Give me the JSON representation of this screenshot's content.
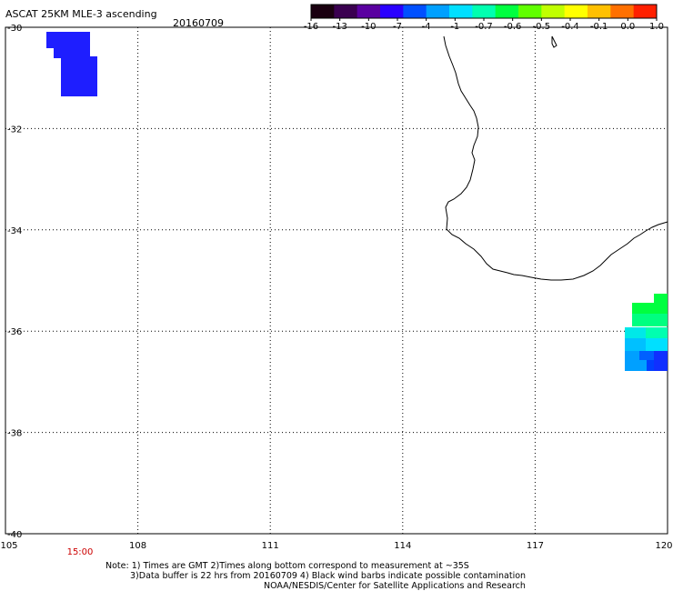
{
  "header": {
    "title": "ASCAT 25KM MLE-3 ascending",
    "date": "20160709"
  },
  "colorbar": {
    "labels": [
      "-16",
      "-13",
      "-10",
      "-7",
      "-4",
      "-1",
      "-0.7",
      "-0.6",
      "-0.5",
      "-0.4",
      "-0.1",
      "0.0",
      "1.0"
    ],
    "colors": [
      "#1a0010",
      "#3a0050",
      "#5a00a0",
      "#2a00ff",
      "#0050ff",
      "#00a0ff",
      "#00e0ff",
      "#00ffb0",
      "#00ff40",
      "#60ff00",
      "#c0ff00",
      "#ffff00",
      "#ffc000",
      "#ff7000",
      "#ff2000"
    ]
  },
  "map": {
    "lat_labels": [
      "-30",
      "-32",
      "-34",
      "-36",
      "-38",
      "-40"
    ],
    "lon_labels": [
      "105",
      "108",
      "111",
      "114",
      "117",
      "120"
    ],
    "lat_range": [
      -40,
      -30
    ],
    "lon_range": [
      105,
      120
    ],
    "time_label": "15:00",
    "time_label_color": "#cc0000"
  },
  "notes": {
    "line1": "Note: 1) Times are GMT 2)Times along bottom correspond to measurement at ~35S",
    "line2": "3)Data buffer is 22 hrs from 20160709 4) Black wind barbs indicate possible contamination",
    "line3": "NOAA/NESDIS/Center for Satellite Applications and Research"
  }
}
